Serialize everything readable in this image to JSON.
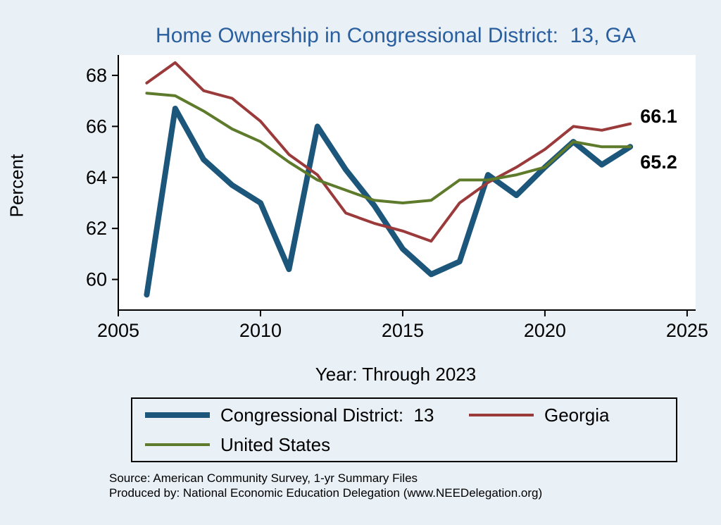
{
  "colors": {
    "background": "#e9f0f6",
    "plot_background": "#ffffff",
    "title": "#2a5f9f",
    "axis": "#000000"
  },
  "chart_data": {
    "type": "line",
    "title": "Home Ownership in Congressional District:  13, GA",
    "xlabel": "Year: Through 2023",
    "ylabel": "Percent",
    "x": [
      2006,
      2007,
      2008,
      2009,
      2010,
      2011,
      2012,
      2013,
      2014,
      2015,
      2016,
      2017,
      2018,
      2019,
      2020,
      2021,
      2022,
      2023
    ],
    "series": [
      {
        "name": "Congressional District:  13",
        "color": "#1c567a",
        "line_width": 8,
        "values": [
          59.4,
          66.7,
          64.7,
          63.7,
          63.0,
          60.4,
          66.0,
          64.3,
          62.9,
          61.2,
          60.2,
          60.7,
          64.1,
          63.3,
          64.4,
          65.4,
          64.5,
          65.2
        ]
      },
      {
        "name": "Georgia",
        "color": "#9b3a3b",
        "line_width": 4,
        "values": [
          67.7,
          68.5,
          67.4,
          67.1,
          66.2,
          64.9,
          64.1,
          62.6,
          62.2,
          61.9,
          61.5,
          63.0,
          63.8,
          64.4,
          65.1,
          66.0,
          65.85,
          66.1
        ]
      },
      {
        "name": "United States",
        "color": "#5e7a2b",
        "line_width": 4,
        "values": [
          67.3,
          67.2,
          66.6,
          65.9,
          65.4,
          64.6,
          63.9,
          63.5,
          63.1,
          63.0,
          63.1,
          63.9,
          63.9,
          64.1,
          64.4,
          65.4,
          65.2,
          65.2
        ]
      }
    ],
    "xlim": [
      2005,
      2025.3
    ],
    "ylim": [
      58.8,
      68.8
    ],
    "xticks": [
      2005,
      2010,
      2015,
      2020,
      2025
    ],
    "yticks": [
      60,
      62,
      64,
      66,
      68
    ],
    "grid": false,
    "legend_position": "bottom",
    "annotations": [
      {
        "text": "66.1",
        "x": 2023.35,
        "y": 66.35
      },
      {
        "text": "65.2",
        "x": 2023.35,
        "y": 64.55
      }
    ]
  },
  "footer": {
    "source_line1": "Source: American Community Survey, 1-yr Summary Files",
    "source_line2": "Produced by: National Economic Education Delegation (www.NEEDelegation.org)"
  }
}
